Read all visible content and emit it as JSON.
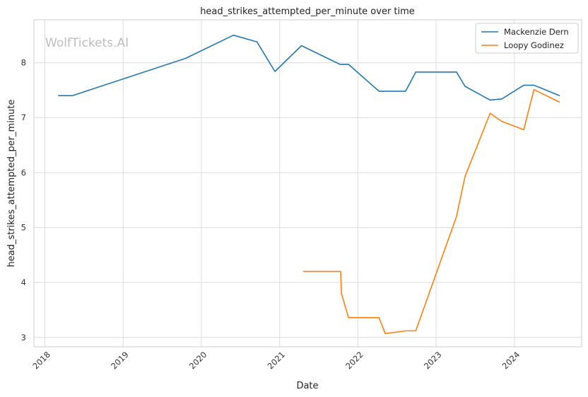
{
  "chart_data": {
    "type": "line",
    "title": "head_strikes_attempted_per_minute over time",
    "xlabel": "Date",
    "ylabel": "head_strikes_attempted_per_minute",
    "watermark": "WolfTickets.AI",
    "xlim": [
      2017.86,
      2024.86
    ],
    "ylim": [
      2.83,
      8.78
    ],
    "x_ticks": [
      2018,
      2019,
      2020,
      2021,
      2022,
      2023,
      2024
    ],
    "x_tick_labels": [
      "2018",
      "2019",
      "2020",
      "2021",
      "2022",
      "2023",
      "2024"
    ],
    "y_ticks": [
      3,
      4,
      5,
      6,
      7,
      8
    ],
    "y_tick_labels": [
      "3",
      "4",
      "5",
      "6",
      "7",
      "8"
    ],
    "grid": true,
    "legend_position": "top-right",
    "series": [
      {
        "name": "Mackenzie Dern",
        "color": "#1f77b4",
        "x": [
          2018.17,
          2018.35,
          2019.8,
          2020.41,
          2020.71,
          2020.94,
          2021.28,
          2021.77,
          2021.88,
          2022.27,
          2022.61,
          2022.74,
          2023.26,
          2023.37,
          2023.69,
          2023.84,
          2024.12,
          2024.25,
          2024.58
        ],
        "y": [
          7.4,
          7.4,
          8.08,
          8.5,
          8.38,
          7.84,
          8.31,
          7.97,
          7.97,
          7.48,
          7.48,
          7.83,
          7.83,
          7.57,
          7.32,
          7.34,
          7.59,
          7.59,
          7.4
        ]
      },
      {
        "name": "Loopy Godinez",
        "color": "#ff7f0e",
        "x": [
          2021.3,
          2021.78,
          2021.79,
          2021.88,
          2022.27,
          2022.35,
          2022.61,
          2022.74,
          2023.26,
          2023.37,
          2023.69,
          2023.84,
          2024.12,
          2024.25,
          2024.58
        ],
        "y": [
          4.2,
          4.2,
          3.8,
          3.36,
          3.36,
          3.07,
          3.12,
          3.12,
          5.2,
          5.93,
          7.08,
          6.93,
          6.78,
          7.51,
          7.28
        ]
      }
    ]
  }
}
